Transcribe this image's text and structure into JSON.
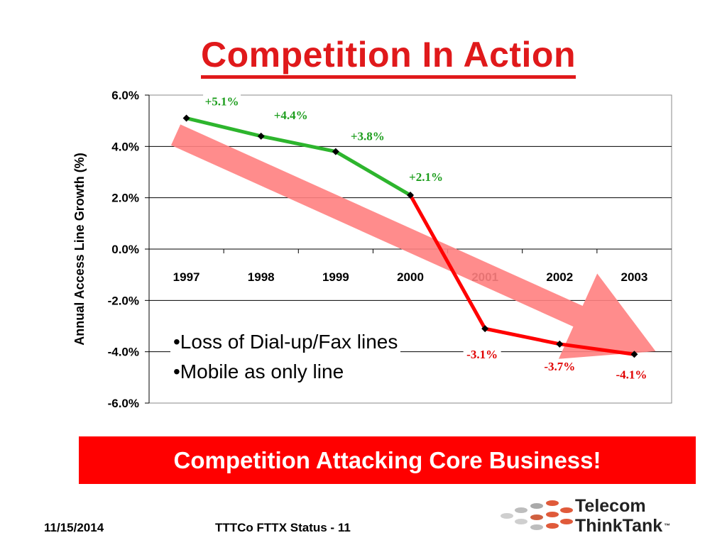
{
  "slide": {
    "title": "Competition In Action",
    "bullets": [
      "•Loss of Dial-up/Fax lines",
      "•Mobile as only line"
    ],
    "banner": "Competition Attacking Core Business!",
    "footer_date": "11/15/2014",
    "footer_slide": "TTTCo FTTX Status - 11",
    "logo_line1": "Telecom",
    "logo_line2": "ThinkTank",
    "logo_tm": "™"
  },
  "colors": {
    "title": "#e0191b",
    "positive_series": "#2db52d",
    "negative_series": "#ff0000",
    "trend_arrow": "#ff8080",
    "banner": "#ff0000"
  },
  "chart_data": {
    "type": "line",
    "title": "",
    "xlabel": "",
    "ylabel": "Annual Access Line Growth (%)",
    "x": [
      "1997",
      "1998",
      "1999",
      "2000",
      "2001",
      "2002",
      "2003"
    ],
    "values": [
      5.1,
      4.4,
      3.8,
      2.1,
      -3.1,
      -3.7,
      -4.1
    ],
    "data_labels": [
      "+5.1%",
      "+4.4%",
      "+3.8%",
      "+2.1%",
      "-3.1%",
      "-3.7%",
      "-4.1%"
    ],
    "y_ticks": [
      "6.0%",
      "4.0%",
      "2.0%",
      "0.0%",
      "-2.0%",
      "-4.0%",
      "-6.0%"
    ],
    "ylim": [
      -6,
      6
    ],
    "grid": true,
    "legend": "none",
    "annotation": "downward trend arrow"
  }
}
